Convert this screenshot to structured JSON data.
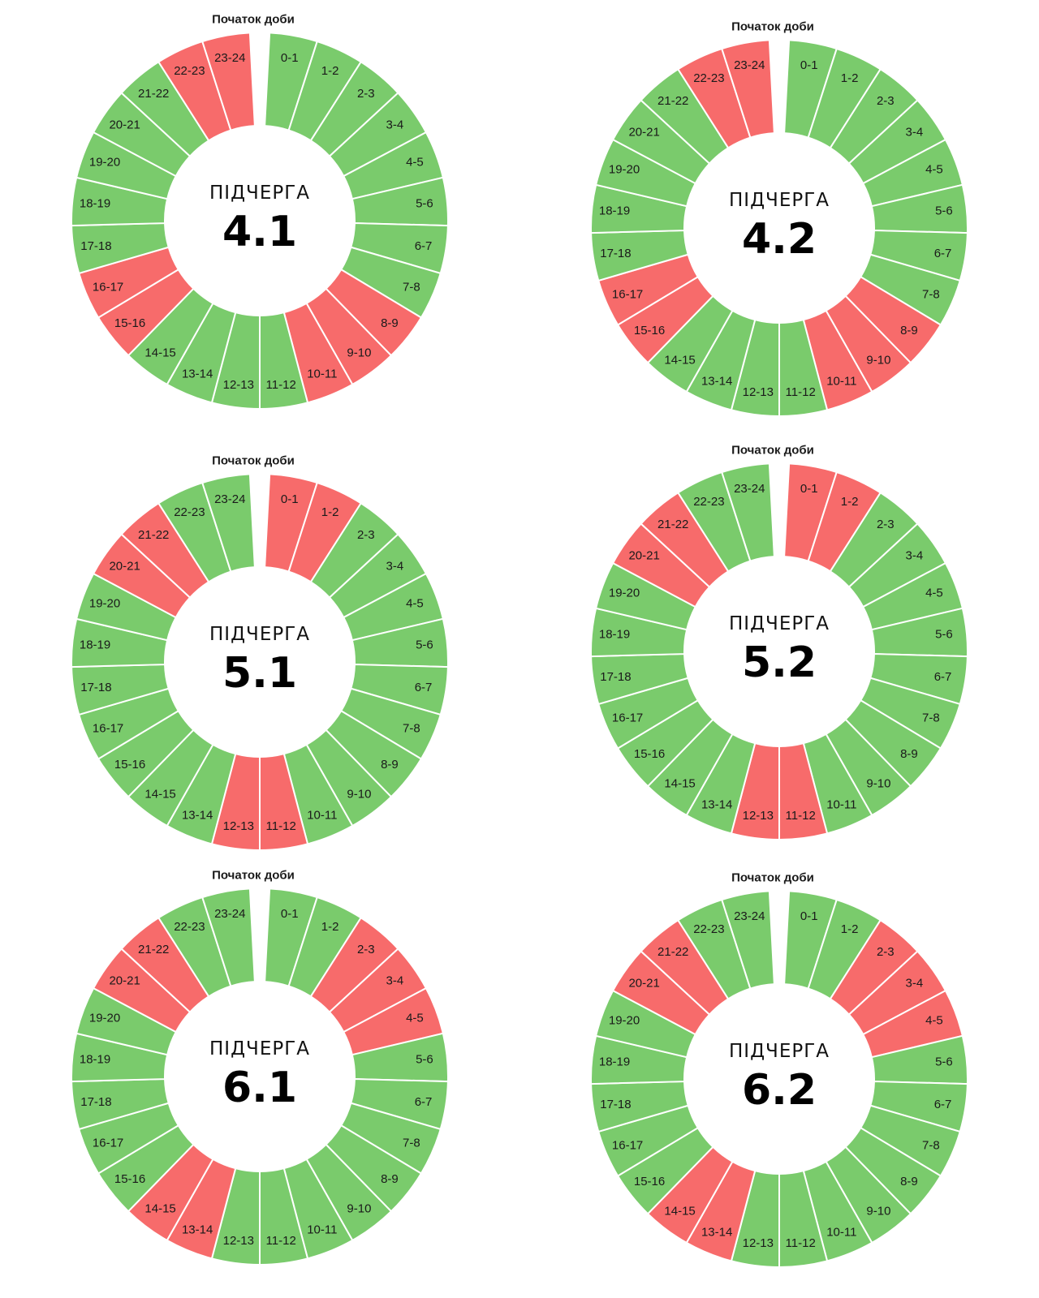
{
  "colors": {
    "on": "#7acb6c",
    "off": "#f76b6b",
    "separator": "#ffffff"
  },
  "start_label": "Початок доби",
  "center_title": "ПІДЧЕРГА",
  "chart_data": [
    {
      "type": "pie",
      "subgroup": "4.1",
      "slots": [
        "0-1",
        "1-2",
        "2-3",
        "3-4",
        "4-5",
        "5-6",
        "6-7",
        "7-8",
        "8-9",
        "9-10",
        "10-11",
        "11-12",
        "12-13",
        "13-14",
        "14-15",
        "15-16",
        "16-17",
        "17-18",
        "18-19",
        "19-20",
        "20-21",
        "21-22",
        "22-23",
        "23-24"
      ],
      "outage": [
        8,
        9,
        10,
        15,
        16,
        22,
        23
      ]
    },
    {
      "type": "pie",
      "subgroup": "4.2",
      "slots": [
        "0-1",
        "1-2",
        "2-3",
        "3-4",
        "4-5",
        "5-6",
        "6-7",
        "7-8",
        "8-9",
        "9-10",
        "10-11",
        "11-12",
        "12-13",
        "13-14",
        "14-15",
        "15-16",
        "16-17",
        "17-18",
        "18-19",
        "19-20",
        "20-21",
        "21-22",
        "22-23",
        "23-24"
      ],
      "outage": [
        8,
        9,
        10,
        15,
        16,
        22,
        23
      ]
    },
    {
      "type": "pie",
      "subgroup": "5.1",
      "slots": [
        "0-1",
        "1-2",
        "2-3",
        "3-4",
        "4-5",
        "5-6",
        "6-7",
        "7-8",
        "8-9",
        "9-10",
        "10-11",
        "11-12",
        "12-13",
        "13-14",
        "14-15",
        "15-16",
        "16-17",
        "17-18",
        "18-19",
        "19-20",
        "20-21",
        "21-22",
        "22-23",
        "23-24"
      ],
      "outage": [
        0,
        1,
        11,
        12,
        20,
        21
      ]
    },
    {
      "type": "pie",
      "subgroup": "5.2",
      "slots": [
        "0-1",
        "1-2",
        "2-3",
        "3-4",
        "4-5",
        "5-6",
        "6-7",
        "7-8",
        "8-9",
        "9-10",
        "10-11",
        "11-12",
        "12-13",
        "13-14",
        "14-15",
        "15-16",
        "16-17",
        "17-18",
        "18-19",
        "19-20",
        "20-21",
        "21-22",
        "22-23",
        "23-24"
      ],
      "outage": [
        0,
        1,
        11,
        12,
        20,
        21
      ]
    },
    {
      "type": "pie",
      "subgroup": "6.1",
      "slots": [
        "0-1",
        "1-2",
        "2-3",
        "3-4",
        "4-5",
        "5-6",
        "6-7",
        "7-8",
        "8-9",
        "9-10",
        "10-11",
        "11-12",
        "12-13",
        "13-14",
        "14-15",
        "15-16",
        "16-17",
        "17-18",
        "18-19",
        "19-20",
        "20-21",
        "21-22",
        "22-23",
        "23-24"
      ],
      "outage": [
        2,
        3,
        4,
        13,
        14,
        20,
        21
      ]
    },
    {
      "type": "pie",
      "subgroup": "6.2",
      "slots": [
        "0-1",
        "1-2",
        "2-3",
        "3-4",
        "4-5",
        "5-6",
        "6-7",
        "7-8",
        "8-9",
        "9-10",
        "10-11",
        "11-12",
        "12-13",
        "13-14",
        "14-15",
        "15-16",
        "16-17",
        "17-18",
        "18-19",
        "19-20",
        "20-21",
        "21-22",
        "22-23",
        "23-24"
      ],
      "outage": [
        2,
        3,
        4,
        13,
        14,
        20,
        21
      ]
    }
  ]
}
